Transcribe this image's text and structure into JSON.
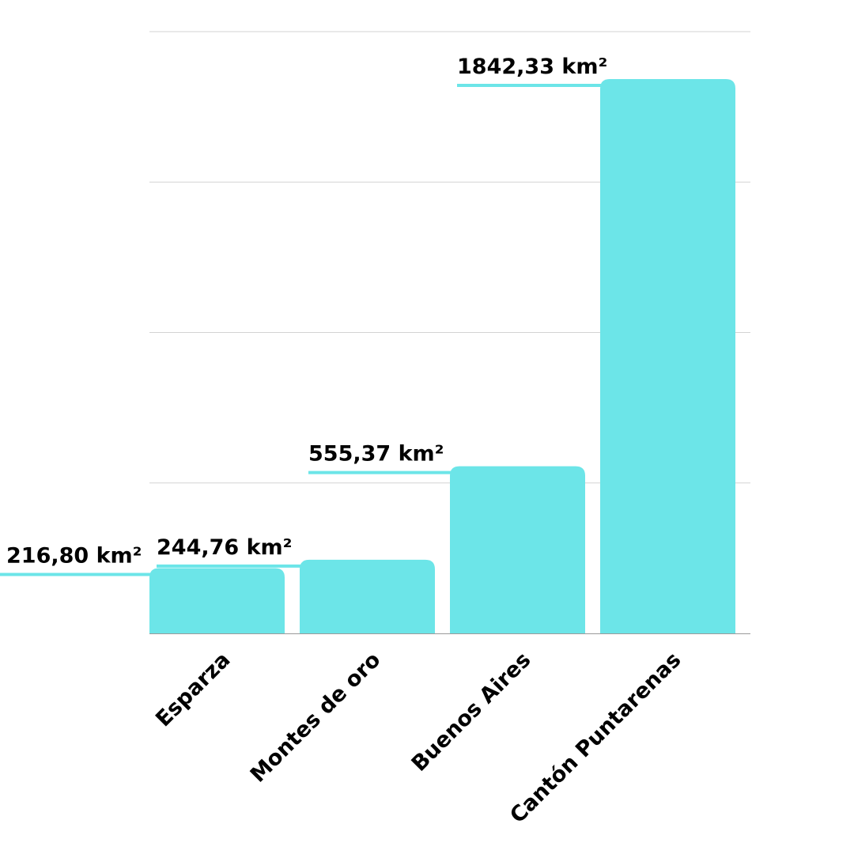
{
  "chart_data": {
    "type": "bar",
    "categories": [
      "Esparza",
      "Montes de oro",
      "Buenos Aires",
      "Cantón Puntarenas"
    ],
    "values": [
      216.8,
      244.76,
      555.37,
      1842.33
    ],
    "data_labels": [
      "216,80 km²",
      "244,76 km²",
      "555,37 km²",
      "1842,33 km²"
    ],
    "title": "",
    "xlabel": "",
    "ylabel": "",
    "ylim": [
      0,
      2000
    ],
    "grid": true,
    "gridlines": [
      500,
      1000,
      1500,
      2000
    ],
    "legend": "none"
  },
  "colors": {
    "bar": "#6ce5e8",
    "grid": "#d3d3d3",
    "axis": "#9a9a9a",
    "text": "#000000"
  }
}
